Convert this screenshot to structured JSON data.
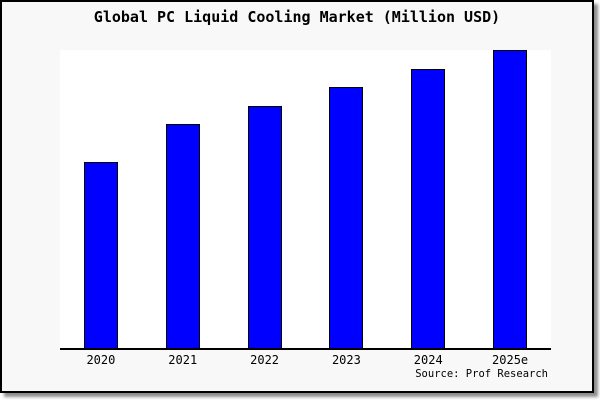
{
  "panel": {
    "background": "#f8f8f8",
    "plot_background": "#ffffff",
    "border_color": "#000000",
    "shadow_color": "rgba(0,0,0,0.45)"
  },
  "chart_data": {
    "type": "bar",
    "title": "Global PC Liquid Cooling Market (Million USD)",
    "categories": [
      "2020",
      "2021",
      "2022",
      "2023",
      "2024",
      "2025e"
    ],
    "values": [
      62.5,
      75,
      81.25,
      87.5,
      93.75,
      100
    ],
    "xlabel": "",
    "ylabel": "",
    "ylim": [
      0,
      100
    ],
    "yaxis_labels_visible": false,
    "grid": false,
    "legend": false,
    "bar_fill": "#0000ff",
    "bar_edge": "#000000",
    "axis_color": "#000000",
    "source_label": "Source: Prof Research",
    "note": "No numeric y-axis is shown in the chart; values are bar heights expressed as percent of the tallest bar (2025e = 100)."
  }
}
